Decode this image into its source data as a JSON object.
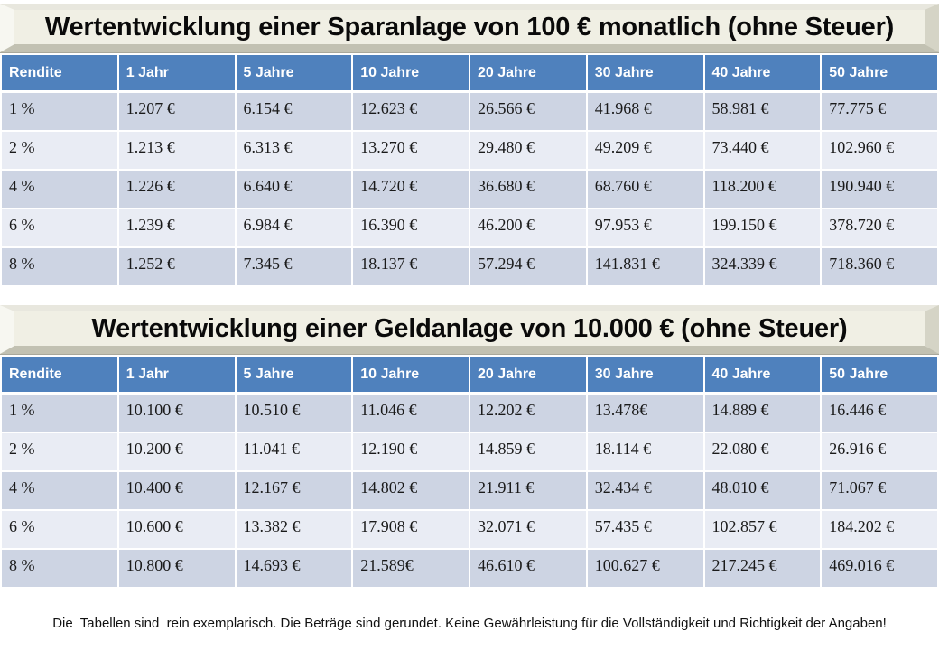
{
  "colors": {
    "header_bg": "#4F81BD",
    "row_dark": "#CDD4E3",
    "row_light": "#E9ECF4",
    "banner_face": "#F0EFE4",
    "header_text": "#FFFFFF",
    "title_text": "#0A0A0A"
  },
  "table1": {
    "title": "Wertentwicklung einer Sparanlage von 100 € monatlich (ohne Steuer)",
    "columns": [
      "Rendite",
      "1 Jahr",
      "5 Jahre",
      "10 Jahre",
      "20 Jahre",
      "30 Jahre",
      "40 Jahre",
      "50 Jahre"
    ],
    "rows": [
      [
        "1 %",
        "1.207 €",
        "6.154 €",
        "12.623 €",
        "26.566 €",
        "41.968 €",
        "58.981 €",
        "77.775 €"
      ],
      [
        "2 %",
        "1.213 €",
        "6.313 €",
        "13.270 €",
        "29.480 €",
        "49.209 €",
        "73.440 €",
        "102.960 €"
      ],
      [
        "4 %",
        "1.226 €",
        "6.640 €",
        "14.720 €",
        "36.680 €",
        "68.760 €",
        "118.200 €",
        "190.940 €"
      ],
      [
        "6 %",
        "1.239 €",
        "6.984 €",
        "16.390 €",
        "46.200 €",
        "97.953 €",
        "199.150 €",
        "378.720 €"
      ],
      [
        "8 %",
        "1.252 €",
        "7.345 €",
        "18.137 €",
        "57.294 €",
        "141.831 €",
        "324.339 €",
        "718.360 €"
      ]
    ]
  },
  "table2": {
    "title": "Wertentwicklung einer Geldanlage von 10.000 € (ohne Steuer)",
    "columns": [
      "Rendite",
      "1 Jahr",
      "5 Jahre",
      "10 Jahre",
      "20 Jahre",
      "30 Jahre",
      "40 Jahre",
      "50 Jahre"
    ],
    "rows": [
      [
        "1 %",
        "10.100 €",
        "10.510 €",
        "11.046 €",
        "12.202 €",
        "13.478€",
        "14.889 €",
        "16.446 €"
      ],
      [
        "2 %",
        "10.200 €",
        "11.041 €",
        "12.190 €",
        "14.859 €",
        "18.114 €",
        "22.080 €",
        "26.916 €"
      ],
      [
        "4 %",
        "10.400 €",
        "12.167 €",
        "14.802 €",
        "21.911 €",
        "32.434 €",
        "48.010 €",
        "71.067 €"
      ],
      [
        "6 %",
        "10.600 €",
        "13.382 €",
        "17.908 €",
        "32.071 €",
        "57.435 €",
        "102.857 €",
        "184.202 €"
      ],
      [
        "8 %",
        "10.800 €",
        "14.693 €",
        "21.589€",
        "46.610 €",
        "100.627 €",
        "217.245 €",
        "469.016 €"
      ]
    ]
  },
  "footer": {
    "text": "Die  Tabellen sind  rein exemplarisch. Die Beträge sind gerundet. Keine Gewährleistung für die Vollständigkeit und Richtigkeit der Angaben!"
  }
}
